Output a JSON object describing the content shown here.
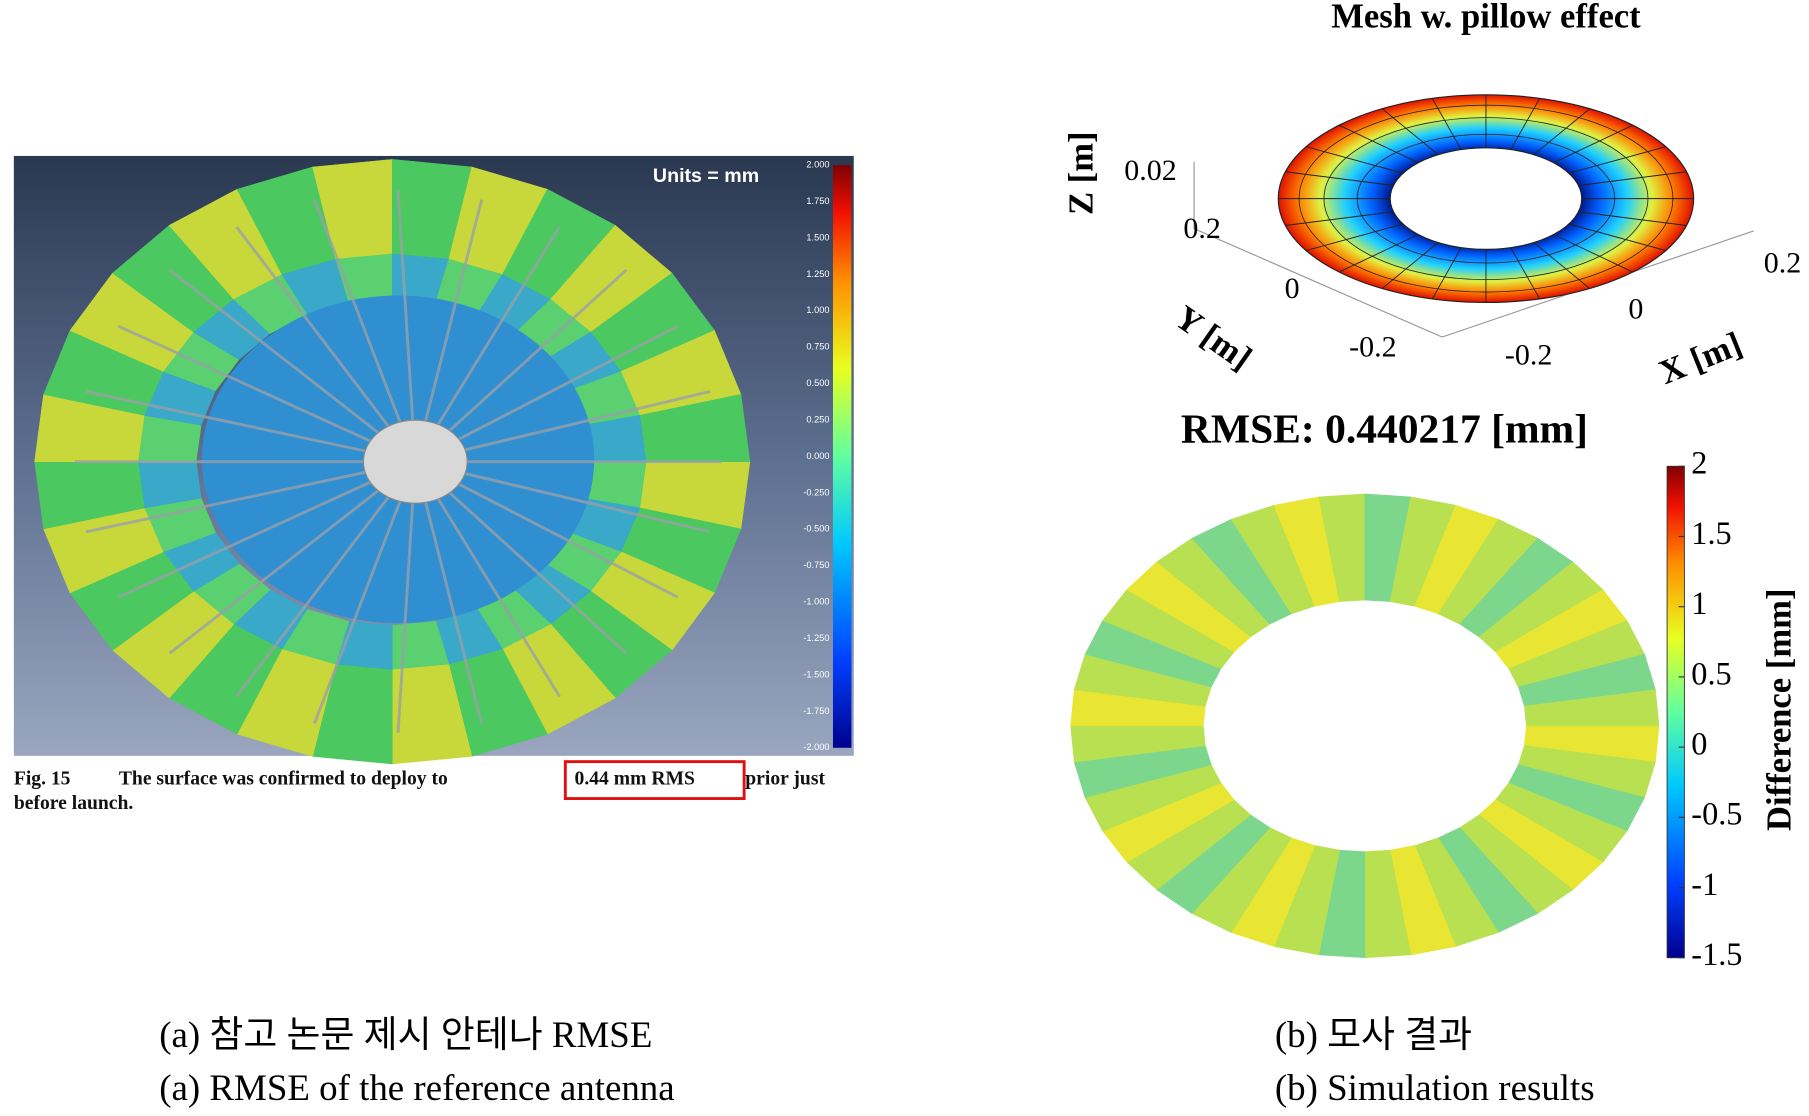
{
  "panel_a": {
    "units": "Units = mm",
    "colorbar_labels": [
      "2.000",
      "1.750",
      "1.500",
      "1.250",
      "1.000",
      "0.750",
      "0.500",
      "0.250",
      "0.000",
      "-0.250",
      "-0.500",
      "-0.750",
      "-1.000",
      "-1.250",
      "-1.500",
      "-1.750",
      "-2.000"
    ],
    "caption": {
      "fig": "Fig. 15",
      "text1": "The surface was confirmed to deploy to",
      "highlight": "0.44 mm RMS",
      "text2": "prior just",
      "text3": "before launch."
    }
  },
  "panel_b": {
    "title": "Mesh w. pillow effect",
    "axes": {
      "z_label": "Z [m]",
      "y_label": "Y [m]",
      "x_label": "X [m]",
      "z_ticks": [
        "0.02"
      ],
      "y_ticks": [
        "0.2",
        "0",
        "-0.2"
      ],
      "x_ticks": [
        "-0.2",
        "0",
        "0.2"
      ]
    },
    "rmse_title": "RMSE: 0.440217 [mm]",
    "colorbar": {
      "label": "Difference [mm]",
      "lim": [
        -1.5,
        2
      ],
      "ticks": [
        2,
        1.5,
        1,
        0.5,
        0,
        -0.5,
        -1,
        -1.5
      ]
    }
  },
  "captions": {
    "a_ko": "(a) 참고 논문 제시 안테나 RMSE",
    "a_en": "(a) RMSE of the reference antenna",
    "b_ko": "(b) 모사 결과",
    "b_en": "(b) Simulation results"
  }
}
